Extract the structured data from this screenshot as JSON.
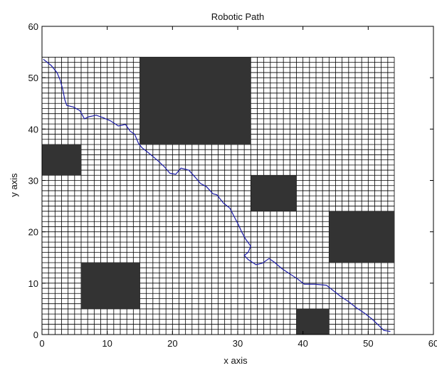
{
  "chart_data": {
    "type": "line",
    "title": "Robotic Path",
    "xlabel": "x axis",
    "ylabel": "y axis",
    "xlim": [
      0,
      60
    ],
    "ylim": [
      0,
      60
    ],
    "xticks": [
      0,
      10,
      20,
      30,
      40,
      50,
      60
    ],
    "yticks": [
      0,
      10,
      20,
      30,
      40,
      50,
      60
    ],
    "grid": {
      "x_range": [
        0,
        54
      ],
      "y_range": [
        0,
        54
      ],
      "cell_size": 1,
      "line_color": "#000000",
      "cell_color": "#ffffff"
    },
    "obstacles": {
      "color": "#333333",
      "rects": [
        {
          "x": [
            15,
            32
          ],
          "y": [
            37,
            54
          ]
        },
        {
          "x": [
            0,
            6
          ],
          "y": [
            31,
            37
          ]
        },
        {
          "x": [
            32,
            39
          ],
          "y": [
            24,
            31
          ]
        },
        {
          "x": [
            44,
            54
          ],
          "y": [
            14,
            24
          ]
        },
        {
          "x": [
            6,
            15
          ],
          "y": [
            5,
            14
          ]
        },
        {
          "x": [
            39,
            44
          ],
          "y": [
            0,
            5
          ]
        }
      ]
    },
    "series": [
      {
        "color": "#1c1ca8",
        "x": [
          0.2,
          1.4,
          2.3,
          2.8,
          3.2,
          3.5,
          3.8,
          4.8,
          5.8,
          6.5,
          7.2,
          8.3,
          9.4,
          10.5,
          11.7,
          12.8,
          13.5,
          14.2,
          14.8,
          15.3,
          16.5,
          17.8,
          18.8,
          19.6,
          20.5,
          21.3,
          22.5,
          23.5,
          24.3,
          25.2,
          26.2,
          26.8,
          27.8,
          28.8,
          29.6,
          30.1,
          30.6,
          31.2,
          32.0,
          31.6,
          31.0,
          31.6,
          32.8,
          33.8,
          34.8,
          35.6,
          36.8,
          38.0,
          39.2,
          40.2,
          41.8,
          43.6,
          44.6,
          45.8,
          47.0,
          48.2,
          49.4,
          50.6,
          51.6,
          52.4,
          53.4
        ],
        "y": [
          53.6,
          52.4,
          51.0,
          49.5,
          47.6,
          45.7,
          44.6,
          44.3,
          43.6,
          42.0,
          42.4,
          42.7,
          42.2,
          41.6,
          40.6,
          40.9,
          39.6,
          39.0,
          37.2,
          36.4,
          35.2,
          33.8,
          32.6,
          31.4,
          31.2,
          32.4,
          32.0,
          30.6,
          29.4,
          28.8,
          27.4,
          27.2,
          25.6,
          24.6,
          22.6,
          21.4,
          20.0,
          18.6,
          17.2,
          16.0,
          15.4,
          14.6,
          13.6,
          13.9,
          14.8,
          14.1,
          12.8,
          11.8,
          10.8,
          9.8,
          9.8,
          9.6,
          8.6,
          7.4,
          6.4,
          5.2,
          4.2,
          3.0,
          1.8,
          0.8,
          0.6
        ]
      }
    ]
  }
}
